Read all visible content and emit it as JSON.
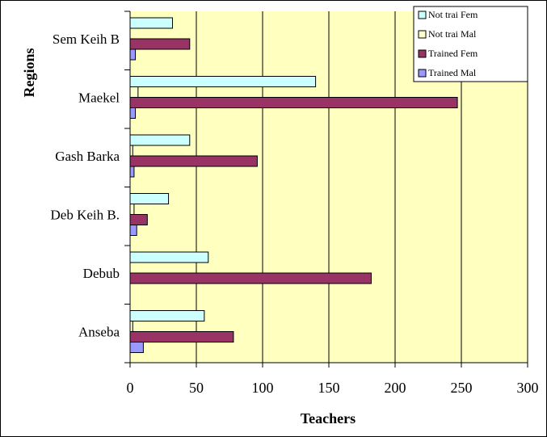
{
  "chart_data": {
    "type": "bar",
    "orientation": "horizontal",
    "categories": [
      "Anseba",
      "Debub",
      "Deb Keih B.",
      "Gash Barka",
      "Maekel",
      "Sem Keih B"
    ],
    "series": [
      {
        "name": "Not trai Fem",
        "color": "#ccffff",
        "values": [
          56,
          59,
          29,
          45,
          140,
          32
        ]
      },
      {
        "name": "Not trai Mal",
        "color": "#ffffcc",
        "values": [
          2,
          0,
          3,
          2,
          6,
          0
        ]
      },
      {
        "name": "Trained Fem",
        "color": "#993366",
        "values": [
          78,
          182,
          13,
          96,
          247,
          45
        ]
      },
      {
        "name": "Trained Mal",
        "color": "#9999ff",
        "values": [
          10,
          0,
          5,
          3,
          4,
          4
        ]
      }
    ],
    "xlabel": "Teachers",
    "ylabel": "Regions",
    "xlim": [
      0,
      300
    ],
    "xticks": [
      0,
      50,
      100,
      150,
      200,
      250,
      300
    ],
    "grid": true,
    "legend": "upper right",
    "plot_background": "#ffffc0"
  }
}
